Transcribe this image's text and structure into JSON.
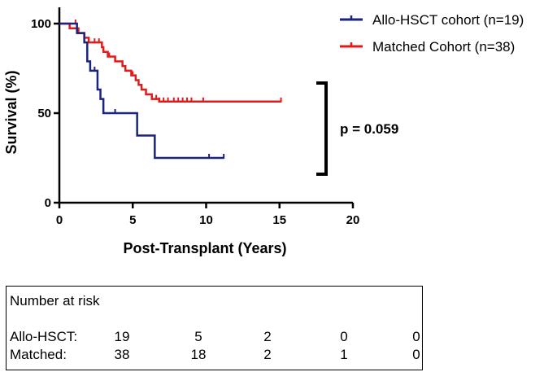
{
  "chart_data": {
    "type": "line",
    "step": true,
    "title": "",
    "xlabel": "Post-Transplant (Years)",
    "ylabel": "Survival (%)",
    "xlim": [
      0,
      20
    ],
    "ylim": [
      0,
      100
    ],
    "xticks": [
      0,
      5,
      10,
      15,
      20
    ],
    "yticks": [
      0,
      50,
      100
    ],
    "legend_position": "top-right",
    "series": [
      {
        "name": "Allo-HSCT cohort (n=19)",
        "color": "#1a237e",
        "steps": [
          [
            0,
            100
          ],
          [
            1.1,
            100
          ],
          [
            1.2,
            94.7
          ],
          [
            1.7,
            89.5
          ],
          [
            1.9,
            78.9
          ],
          [
            2.1,
            73.7
          ],
          [
            2.6,
            63.2
          ],
          [
            2.8,
            57.9
          ],
          [
            3.0,
            50.0
          ],
          [
            5.3,
            50.0
          ],
          [
            5.3,
            37.5
          ],
          [
            6.5,
            37.5
          ],
          [
            6.5,
            25.0
          ],
          [
            11.2,
            25.0
          ]
        ],
        "censored": [
          [
            2.4,
            73.7
          ],
          [
            3.8,
            50.0
          ],
          [
            10.2,
            25.0
          ],
          [
            11.2,
            25.0
          ]
        ]
      },
      {
        "name": "Matched Cohort (n=38)",
        "color": "#e31a1c",
        "steps": [
          [
            0,
            100
          ],
          [
            0.7,
            100
          ],
          [
            0.7,
            97.4
          ],
          [
            1.3,
            97.4
          ],
          [
            1.3,
            94.7
          ],
          [
            1.7,
            94.7
          ],
          [
            1.7,
            92.1
          ],
          [
            2.0,
            92.1
          ],
          [
            2.0,
            89.5
          ],
          [
            2.9,
            89.5
          ],
          [
            2.9,
            86.8
          ],
          [
            3.0,
            86.8
          ],
          [
            3.0,
            84.2
          ],
          [
            3.3,
            84.2
          ],
          [
            3.3,
            81.6
          ],
          [
            3.8,
            81.6
          ],
          [
            3.8,
            78.9
          ],
          [
            4.3,
            78.9
          ],
          [
            4.3,
            76.3
          ],
          [
            4.5,
            76.3
          ],
          [
            4.5,
            73.7
          ],
          [
            4.9,
            73.7
          ],
          [
            4.9,
            71.1
          ],
          [
            5.2,
            71.1
          ],
          [
            5.2,
            68.4
          ],
          [
            5.4,
            68.4
          ],
          [
            5.4,
            65.8
          ],
          [
            5.6,
            65.8
          ],
          [
            5.6,
            63.2
          ],
          [
            5.9,
            63.2
          ],
          [
            5.9,
            60.5
          ],
          [
            6.3,
            60.5
          ],
          [
            6.3,
            57.9
          ],
          [
            6.8,
            57.9
          ],
          [
            6.8,
            56.5
          ],
          [
            15.1,
            56.5
          ]
        ],
        "censored": [
          [
            1.1,
            100
          ],
          [
            2.4,
            89.5
          ],
          [
            2.7,
            89.5
          ],
          [
            3.4,
            81.6
          ],
          [
            5.0,
            71.1
          ],
          [
            6.6,
            57.9
          ],
          [
            6.8,
            56.5
          ],
          [
            7.1,
            56.5
          ],
          [
            7.4,
            56.5
          ],
          [
            7.8,
            56.5
          ],
          [
            8.1,
            56.5
          ],
          [
            8.4,
            56.5
          ],
          [
            8.7,
            56.5
          ],
          [
            9.0,
            56.5
          ],
          [
            9.8,
            56.5
          ],
          [
            15.1,
            56.5
          ]
        ]
      }
    ],
    "annotation": "p = 0.059"
  },
  "risk_table": {
    "title": "Number at risk",
    "rows": [
      {
        "label": "Allo-HSCT:",
        "values": [
          "19",
          "5",
          "2",
          "0",
          "0"
        ]
      },
      {
        "label": "Matched:",
        "values": [
          "38",
          "18",
          "2",
          "1",
          "0"
        ]
      }
    ]
  }
}
